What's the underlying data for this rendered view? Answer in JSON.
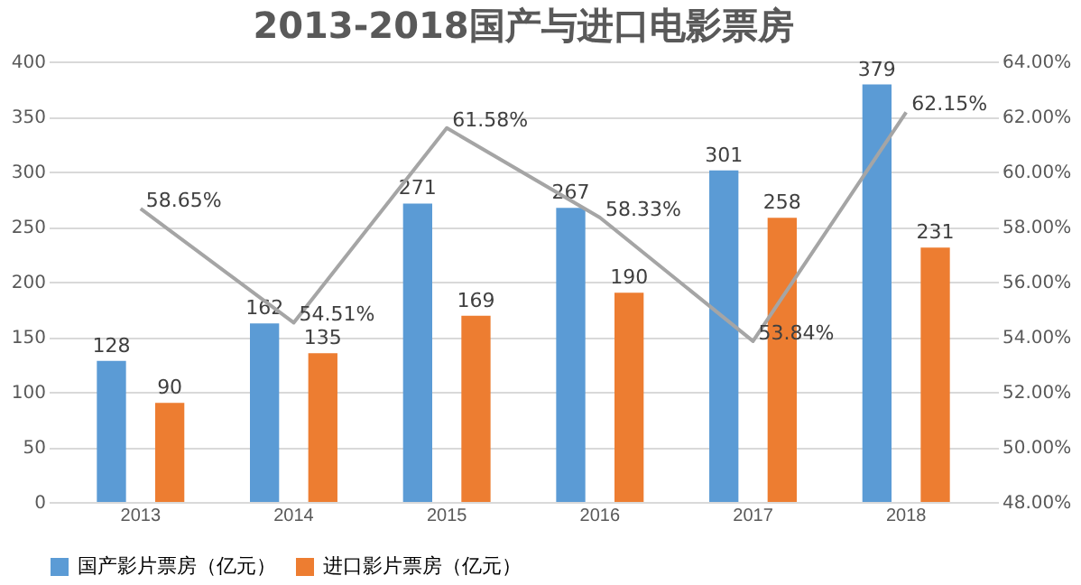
{
  "chart_data": {
    "type": "bar",
    "title": "2013-2018国产与进口电影票房",
    "categories": [
      "2013",
      "2014",
      "2015",
      "2016",
      "2017",
      "2018"
    ],
    "series": [
      {
        "name": "国产影片票房（亿元）",
        "color": "#5b9bd5",
        "values": [
          128,
          162,
          271,
          267,
          301,
          379
        ],
        "value_labels": [
          "128",
          "162",
          "271",
          "267",
          "301",
          "379"
        ]
      },
      {
        "name": "进口影片票房（亿元）",
        "color": "#ed7d31",
        "values": [
          90,
          135,
          169,
          190,
          258,
          231
        ],
        "value_labels": [
          "90",
          "135",
          "169",
          "190",
          "258",
          "231"
        ]
      },
      {
        "type": "line",
        "axis": "y2",
        "color": "#a5a5a5",
        "values": [
          58.65,
          54.51,
          61.58,
          58.33,
          53.84,
          62.15
        ],
        "value_labels": [
          "58.65%",
          "54.51%",
          "61.58%",
          "58.33%",
          "53.84%",
          "62.15%"
        ]
      }
    ],
    "ylim": [
      0,
      400
    ],
    "yticks": [
      0,
      50,
      100,
      150,
      200,
      250,
      300,
      350,
      400
    ],
    "y2lim": [
      48,
      64
    ],
    "y2ticks": [
      {
        "value": 48,
        "label": "48.00%"
      },
      {
        "value": 50,
        "label": "50.00%"
      },
      {
        "value": 52,
        "label": "52.00%"
      },
      {
        "value": 54,
        "label": "54.00%"
      },
      {
        "value": 56,
        "label": "56.00%"
      },
      {
        "value": 58,
        "label": "58.00%"
      },
      {
        "value": 60,
        "label": "60.00%"
      },
      {
        "value": 62,
        "label": "62.00%"
      },
      {
        "value": 64,
        "label": "64.00%"
      }
    ],
    "grid": "y",
    "legend": "bottom",
    "marker": "none",
    "line_style": "solid"
  }
}
